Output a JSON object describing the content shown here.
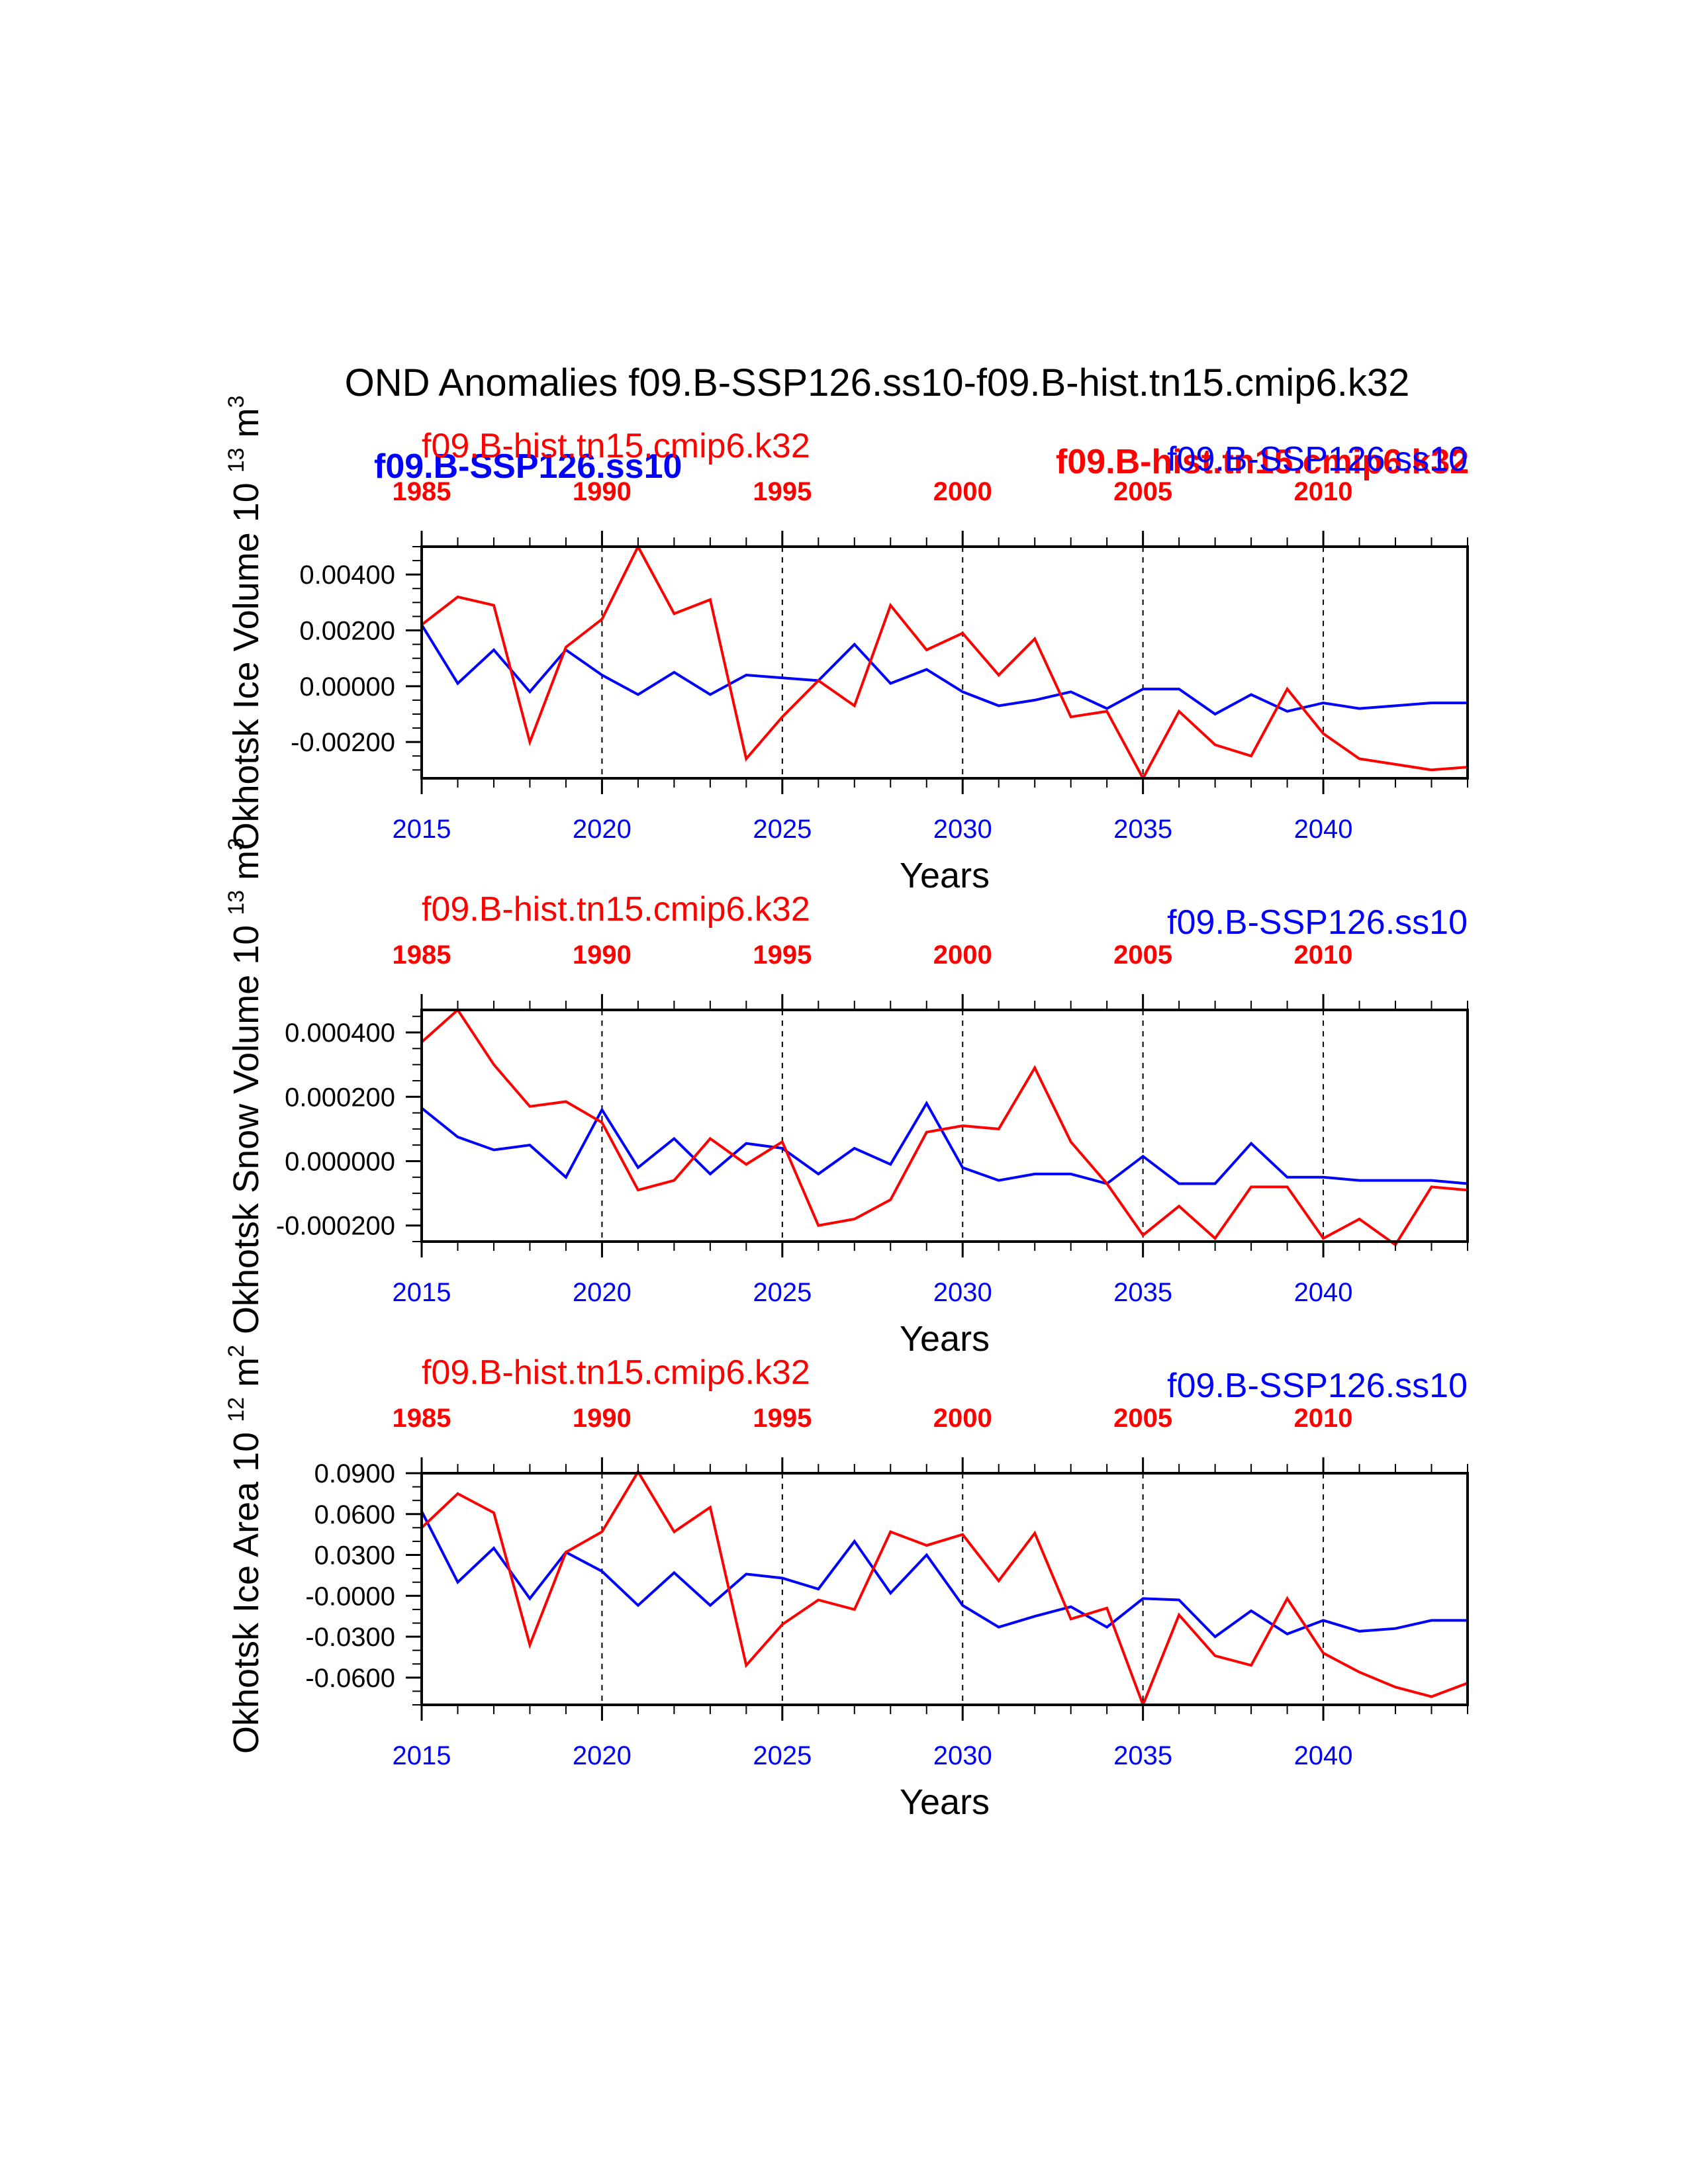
{
  "title": "OND Anomalies f09.B-SSP126.ss10-f09.B-hist.tn15.cmip6.k32",
  "colors": {
    "ssp": "#0000ff",
    "hist": "#ff0000",
    "axis": "#000000"
  },
  "legend": {
    "ssp_bold": "f09.B-SSP126.ss10",
    "hist_bold": "f09.B-hist.tn15.cmip6.k32"
  },
  "chart_data": [
    {
      "type": "line",
      "ylabel": "Okhotsk Ice Volume 10",
      "ylabel_exp": "13",
      "ylabel_unit": "m",
      "ylabel_unit_exp": "3",
      "xlabel": "Years",
      "hist_label": "f09.B-hist.tn15.cmip6.k32",
      "ssp_label": "f09.B-SSP126.ss10",
      "ylim": [
        -0.0033,
        0.005
      ],
      "yticks": [
        0.004,
        0.002,
        0.0,
        -0.002
      ],
      "ytick_labels": [
        "0.00400",
        "0.00200",
        "0.00000",
        "-0.00200"
      ],
      "yminor": 0.0005,
      "x_bottom": [
        2015,
        2016,
        2017,
        2018,
        2019,
        2020,
        2021,
        2022,
        2023,
        2024,
        2025,
        2026,
        2027,
        2028,
        2029,
        2030,
        2031,
        2032,
        2033,
        2034,
        2035,
        2036,
        2037,
        2038,
        2039,
        2040,
        2041,
        2042,
        2043,
        2044
      ],
      "x_top": [
        1985,
        1986,
        1987,
        1988,
        1989,
        1990,
        1991,
        1992,
        1993,
        1994,
        1995,
        1996,
        1997,
        1998,
        1999,
        2000,
        2001,
        2002,
        2003,
        2004,
        2005,
        2006,
        2007,
        2008,
        2009,
        2010,
        2011,
        2012,
        2013,
        2014
      ],
      "xticks_bottom": [
        "2015",
        "2020",
        "2025",
        "2030",
        "2035",
        "2040"
      ],
      "xticks_top": [
        "1985",
        "1990",
        "1995",
        "2000",
        "2005",
        "2010"
      ],
      "series": [
        {
          "name": "f09.B-SSP126.ss10",
          "color": "#0000ff",
          "values": [
            0.0022,
            0.0001,
            0.0013,
            -0.0002,
            0.0013,
            0.0004,
            -0.0003,
            0.0005,
            -0.0003,
            0.0004,
            0.0003,
            0.0002,
            0.0015,
            0.0001,
            0.0006,
            -0.0002,
            -0.0007,
            -0.0005,
            -0.0002,
            -0.0008,
            -0.0001,
            -0.0001,
            -0.001,
            -0.0003,
            -0.0009,
            -0.0006,
            -0.0008,
            -0.0007,
            -0.0006,
            -0.0006
          ]
        },
        {
          "name": "f09.B-hist.tn15.cmip6.k32",
          "color": "#ff0000",
          "values": [
            0.0022,
            0.0032,
            0.0029,
            -0.002,
            0.0014,
            0.0024,
            0.005,
            0.0026,
            0.0031,
            -0.0026,
            -0.0011,
            0.0002,
            -0.0007,
            0.0029,
            0.0013,
            0.0019,
            0.0004,
            0.0017,
            -0.0011,
            -0.0009,
            -0.0033,
            -0.0009,
            -0.0021,
            -0.0025,
            -0.0001,
            -0.0017,
            -0.0026,
            -0.0028,
            -0.003,
            -0.0029
          ]
        }
      ]
    },
    {
      "type": "line",
      "ylabel": "Okhotsk Snow Volume 10",
      "ylabel_exp": "13",
      "ylabel_unit": "m",
      "ylabel_unit_exp": "3",
      "xlabel": "Years",
      "hist_label": "f09.B-hist.tn15.cmip6.k32",
      "ssp_label": "f09.B-SSP126.ss10",
      "ylim": [
        -0.00025,
        0.00047
      ],
      "yticks": [
        0.0004,
        0.0002,
        0.0,
        -0.0002
      ],
      "ytick_labels": [
        "0.000400",
        "0.000200",
        "0.000000",
        "-0.000200"
      ],
      "yminor": 5e-05,
      "x_bottom": [
        2015,
        2016,
        2017,
        2018,
        2019,
        2020,
        2021,
        2022,
        2023,
        2024,
        2025,
        2026,
        2027,
        2028,
        2029,
        2030,
        2031,
        2032,
        2033,
        2034,
        2035,
        2036,
        2037,
        2038,
        2039,
        2040,
        2041,
        2042,
        2043,
        2044
      ],
      "x_top": [
        1985,
        1986,
        1987,
        1988,
        1989,
        1990,
        1991,
        1992,
        1993,
        1994,
        1995,
        1996,
        1997,
        1998,
        1999,
        2000,
        2001,
        2002,
        2003,
        2004,
        2005,
        2006,
        2007,
        2008,
        2009,
        2010,
        2011,
        2012,
        2013,
        2014
      ],
      "xticks_bottom": [
        "2015",
        "2020",
        "2025",
        "2030",
        "2035",
        "2040"
      ],
      "xticks_top": [
        "1985",
        "1990",
        "1995",
        "2000",
        "2005",
        "2010"
      ],
      "series": [
        {
          "name": "f09.B-SSP126.ss10",
          "color": "#0000ff",
          "values": [
            0.000165,
            7.5e-05,
            3.5e-05,
            5e-05,
            -5e-05,
            0.00016,
            -2e-05,
            7e-05,
            -4e-05,
            5.5e-05,
            4e-05,
            -4e-05,
            4e-05,
            -1e-05,
            0.00018,
            -2e-05,
            -6e-05,
            -4e-05,
            -4e-05,
            -7e-05,
            1.5e-05,
            -7e-05,
            -7e-05,
            5.5e-05,
            -5e-05,
            -5e-05,
            -6e-05,
            -6e-05,
            -6e-05,
            -7e-05
          ]
        },
        {
          "name": "f09.B-hist.tn15.cmip6.k32",
          "color": "#ff0000",
          "values": [
            0.00037,
            0.00047,
            0.0003,
            0.00017,
            0.000185,
            0.00012,
            -9e-05,
            -6e-05,
            7e-05,
            -1e-05,
            6e-05,
            -0.0002,
            -0.00018,
            -0.00012,
            9e-05,
            0.00011,
            0.0001,
            0.00029,
            6e-05,
            -7e-05,
            -0.00023,
            -0.00014,
            -0.00024,
            -8e-05,
            -8e-05,
            -0.00024,
            -0.00018,
            -0.00026,
            -8e-05,
            -9e-05
          ]
        }
      ]
    },
    {
      "type": "line",
      "ylabel": "Okhotsk Ice Area 10",
      "ylabel_exp": "12",
      "ylabel_unit": "m",
      "ylabel_unit_exp": "2",
      "xlabel": "Years",
      "hist_label": "f09.B-hist.tn15.cmip6.k32",
      "ssp_label": "f09.B-SSP126.ss10",
      "ylim": [
        -0.08,
        0.09
      ],
      "yticks": [
        0.09,
        0.06,
        0.03,
        0.0,
        -0.03,
        -0.06
      ],
      "ytick_labels": [
        "0.0900",
        "0.0600",
        "0.0300",
        "-0.0000",
        "-0.0300",
        "-0.0600"
      ],
      "yminor": 0.01,
      "x_bottom": [
        2015,
        2016,
        2017,
        2018,
        2019,
        2020,
        2021,
        2022,
        2023,
        2024,
        2025,
        2026,
        2027,
        2028,
        2029,
        2030,
        2031,
        2032,
        2033,
        2034,
        2035,
        2036,
        2037,
        2038,
        2039,
        2040,
        2041,
        2042,
        2043,
        2044
      ],
      "x_top": [
        1985,
        1986,
        1987,
        1988,
        1989,
        1990,
        1991,
        1992,
        1993,
        1994,
        1995,
        1996,
        1997,
        1998,
        1999,
        2000,
        2001,
        2002,
        2003,
        2004,
        2005,
        2006,
        2007,
        2008,
        2009,
        2010,
        2011,
        2012,
        2013,
        2014
      ],
      "xticks_bottom": [
        "2015",
        "2020",
        "2025",
        "2030",
        "2035",
        "2040"
      ],
      "xticks_top": [
        "1985",
        "1990",
        "1995",
        "2000",
        "2005",
        "2010"
      ],
      "series": [
        {
          "name": "f09.B-SSP126.ss10",
          "color": "#0000ff",
          "values": [
            0.062,
            0.01,
            0.035,
            -0.002,
            0.032,
            0.018,
            -0.007,
            0.017,
            -0.007,
            0.016,
            0.013,
            0.005,
            0.04,
            0.002,
            0.03,
            -0.007,
            -0.023,
            -0.015,
            -0.008,
            -0.023,
            -0.002,
            -0.003,
            -0.03,
            -0.011,
            -0.028,
            -0.018,
            -0.026,
            -0.024,
            -0.018,
            -0.018
          ]
        },
        {
          "name": "f09.B-hist.tn15.cmip6.k32",
          "color": "#ff0000",
          "values": [
            0.05,
            0.075,
            0.061,
            -0.036,
            0.032,
            0.047,
            0.091,
            0.047,
            0.065,
            -0.051,
            -0.021,
            -0.003,
            -0.01,
            0.047,
            0.037,
            0.045,
            0.011,
            0.046,
            -0.017,
            -0.009,
            -0.08,
            -0.014,
            -0.044,
            -0.051,
            -0.002,
            -0.042,
            -0.056,
            -0.067,
            -0.074,
            -0.064
          ]
        }
      ]
    }
  ]
}
